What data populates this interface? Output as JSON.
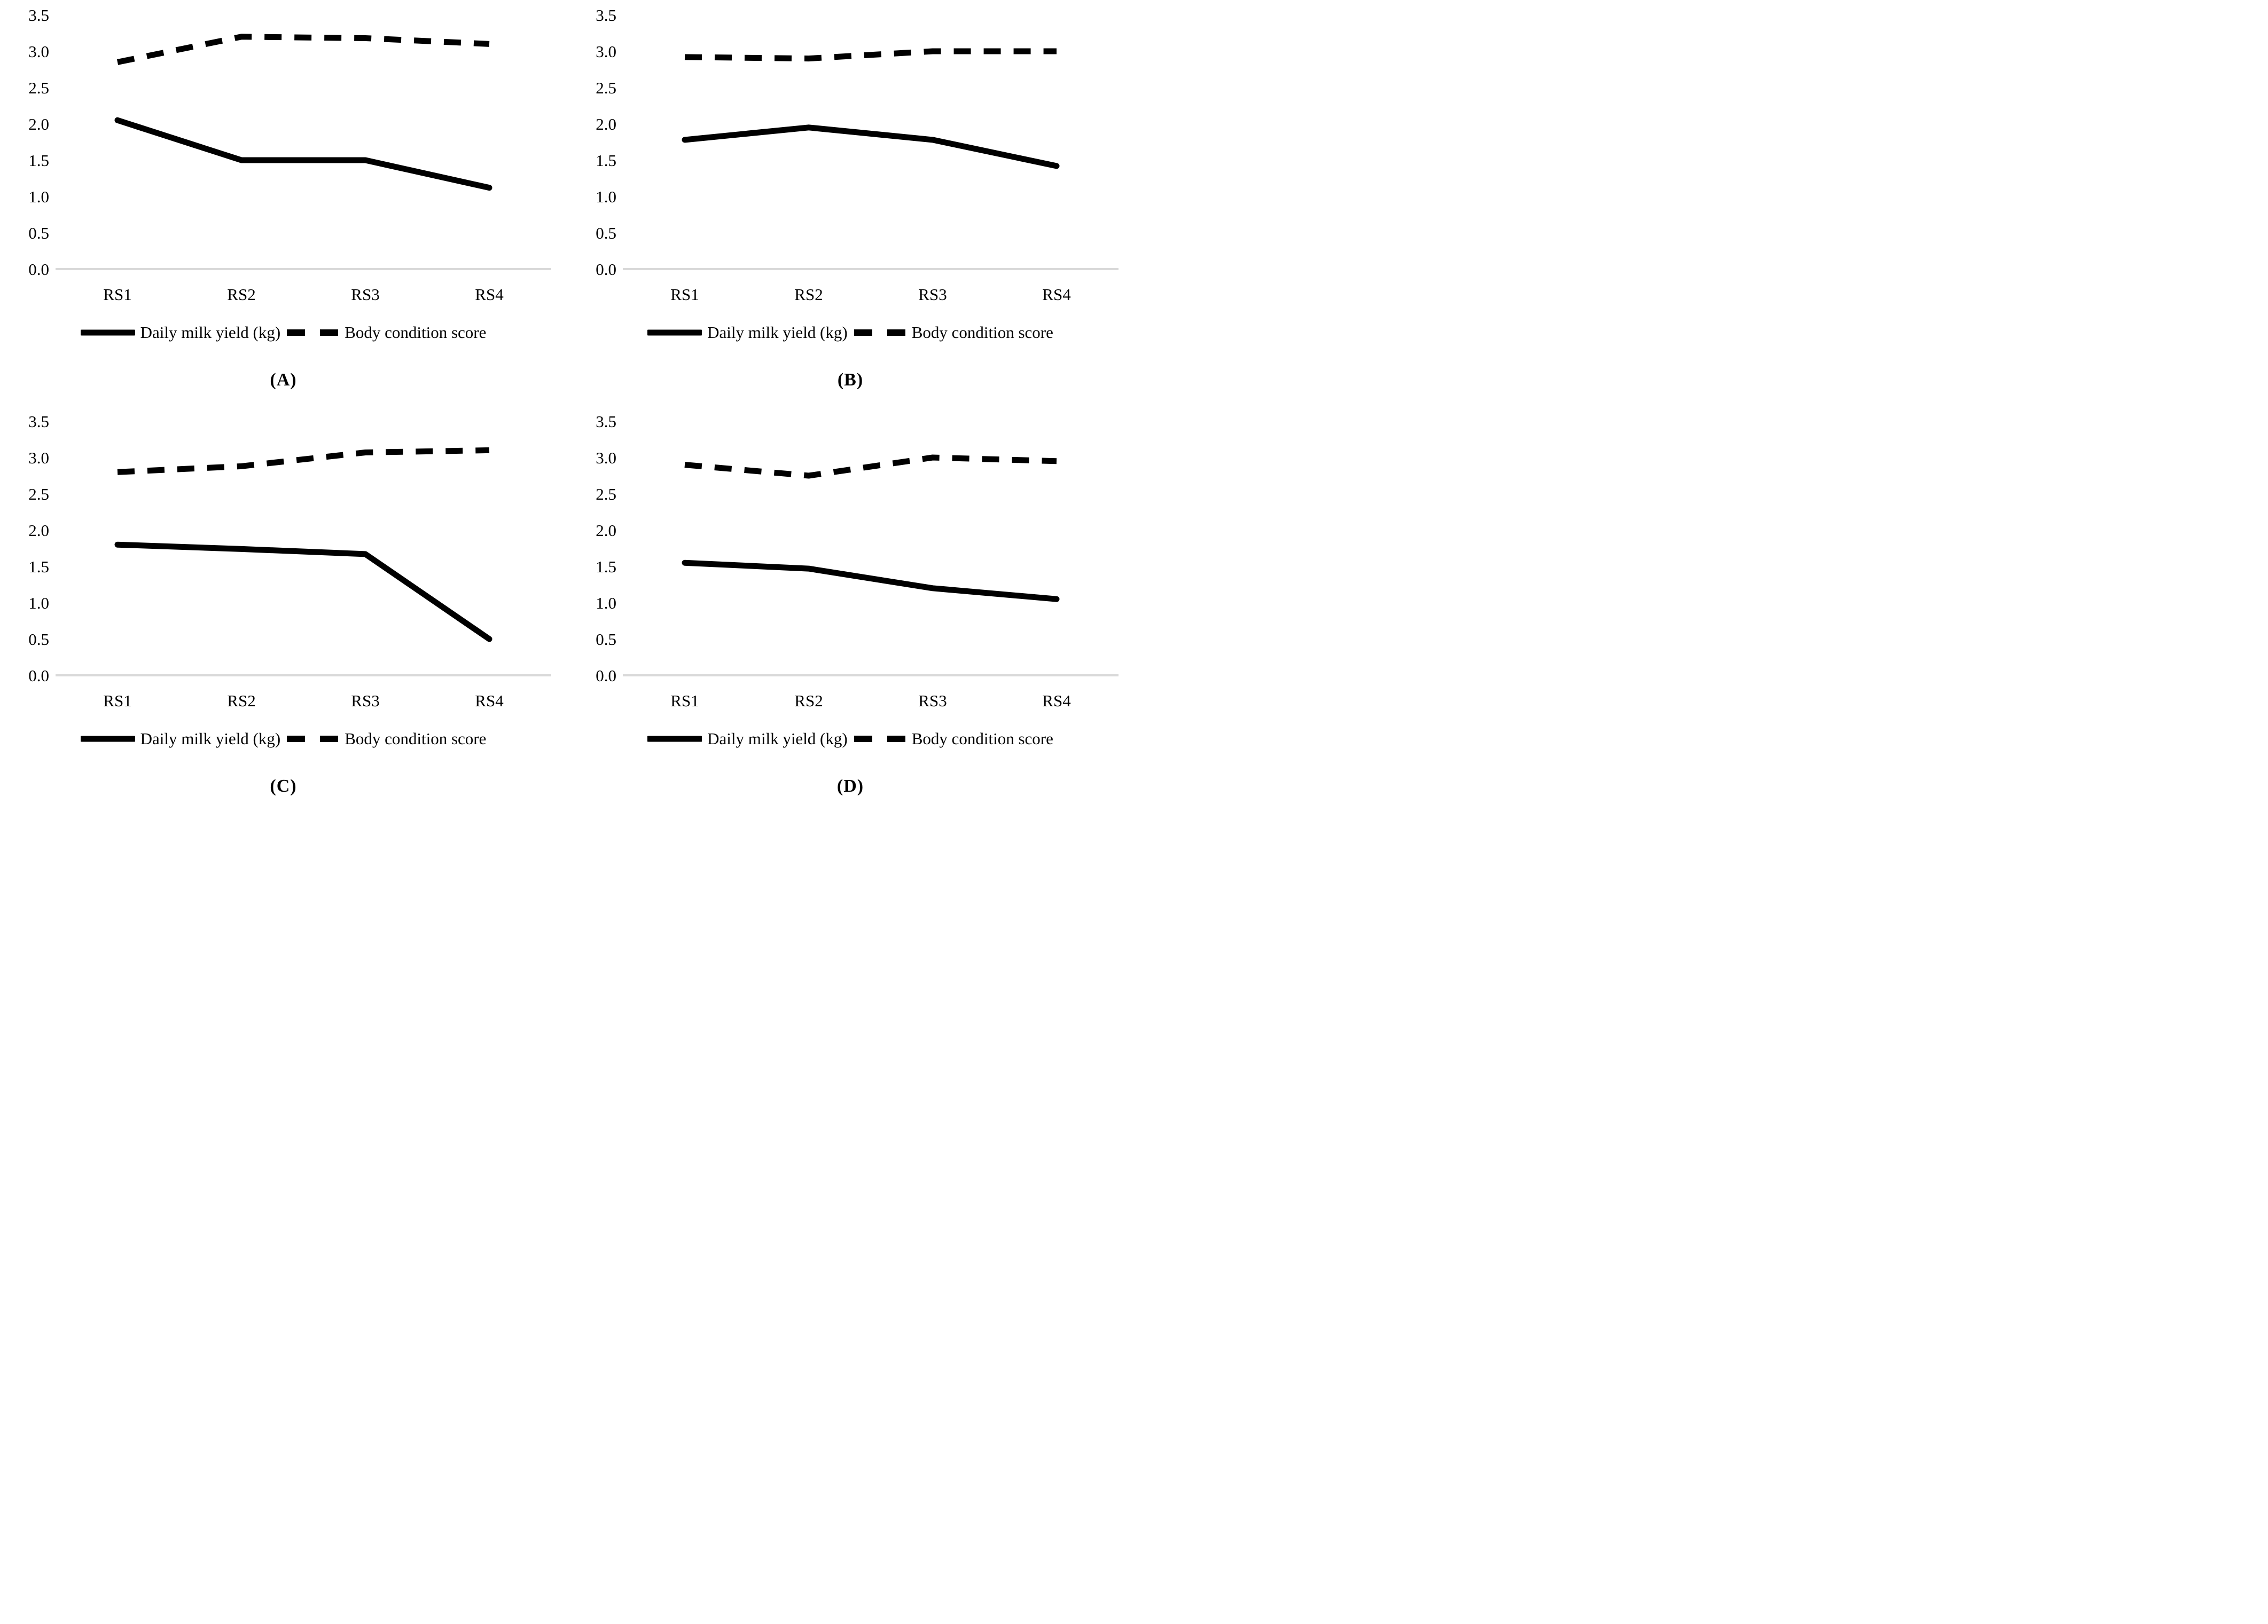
{
  "figure": {
    "legend": {
      "milk_label": "Daily milk yield (kg)",
      "bcs_label": "Body condition score"
    },
    "colors": {
      "series_line": "#000000",
      "axis_baseline": "#d9d9d9",
      "text": "#000000"
    }
  },
  "chart_data": [
    {
      "type": "line",
      "panel": "A",
      "caption": "(A)",
      "categories": [
        "RS1",
        "RS2",
        "RS3",
        "RS4"
      ],
      "ylim": [
        0,
        3.5
      ],
      "yticks": [
        "0.0",
        "0.5",
        "1.0",
        "1.5",
        "2.0",
        "2.5",
        "3.0",
        "3.5"
      ],
      "grid": "baseline-only",
      "legend_position": "bottom",
      "series": [
        {
          "name": "Daily milk yield (kg)",
          "style": "solid",
          "values": [
            2.05,
            1.5,
            1.5,
            1.12
          ]
        },
        {
          "name": "Body condition score",
          "style": "dashed",
          "values": [
            2.85,
            3.2,
            3.18,
            3.1
          ]
        }
      ]
    },
    {
      "type": "line",
      "panel": "B",
      "caption": "(B)",
      "categories": [
        "RS1",
        "RS2",
        "RS3",
        "RS4"
      ],
      "ylim": [
        0,
        3.5
      ],
      "yticks": [
        "0.0",
        "0.5",
        "1.0",
        "1.5",
        "2.0",
        "2.5",
        "3.0",
        "3.5"
      ],
      "grid": "baseline-only",
      "legend_position": "bottom",
      "series": [
        {
          "name": "Daily milk yield (kg)",
          "style": "solid",
          "values": [
            1.78,
            1.95,
            1.78,
            1.42
          ]
        },
        {
          "name": "Body condition score",
          "style": "dashed",
          "values": [
            2.92,
            2.9,
            3.0,
            3.0
          ]
        }
      ]
    },
    {
      "type": "line",
      "panel": "C",
      "caption": "(C)",
      "categories": [
        "RS1",
        "RS2",
        "RS3",
        "RS4"
      ],
      "ylim": [
        0,
        3.5
      ],
      "yticks": [
        "0.0",
        "0.5",
        "1.0",
        "1.5",
        "2.0",
        "2.5",
        "3.0",
        "3.5"
      ],
      "grid": "baseline-only",
      "legend_position": "bottom",
      "series": [
        {
          "name": "Daily milk yield (kg)",
          "style": "solid",
          "values": [
            1.8,
            1.74,
            1.67,
            0.5
          ]
        },
        {
          "name": "Body condition score",
          "style": "dashed",
          "values": [
            2.8,
            2.88,
            3.07,
            3.1
          ]
        }
      ]
    },
    {
      "type": "line",
      "panel": "D",
      "caption": "(D)",
      "categories": [
        "RS1",
        "RS2",
        "RS3",
        "RS4"
      ],
      "ylim": [
        0,
        3.5
      ],
      "yticks": [
        "0.0",
        "0.5",
        "1.0",
        "1.5",
        "2.0",
        "2.5",
        "3.0",
        "3.5"
      ],
      "grid": "baseline-only",
      "legend_position": "bottom",
      "series": [
        {
          "name": "Daily milk yield (kg)",
          "style": "solid",
          "values": [
            1.55,
            1.47,
            1.2,
            1.05
          ]
        },
        {
          "name": "Body condition score",
          "style": "dashed",
          "values": [
            2.9,
            2.75,
            3.0,
            2.95
          ]
        }
      ]
    }
  ]
}
